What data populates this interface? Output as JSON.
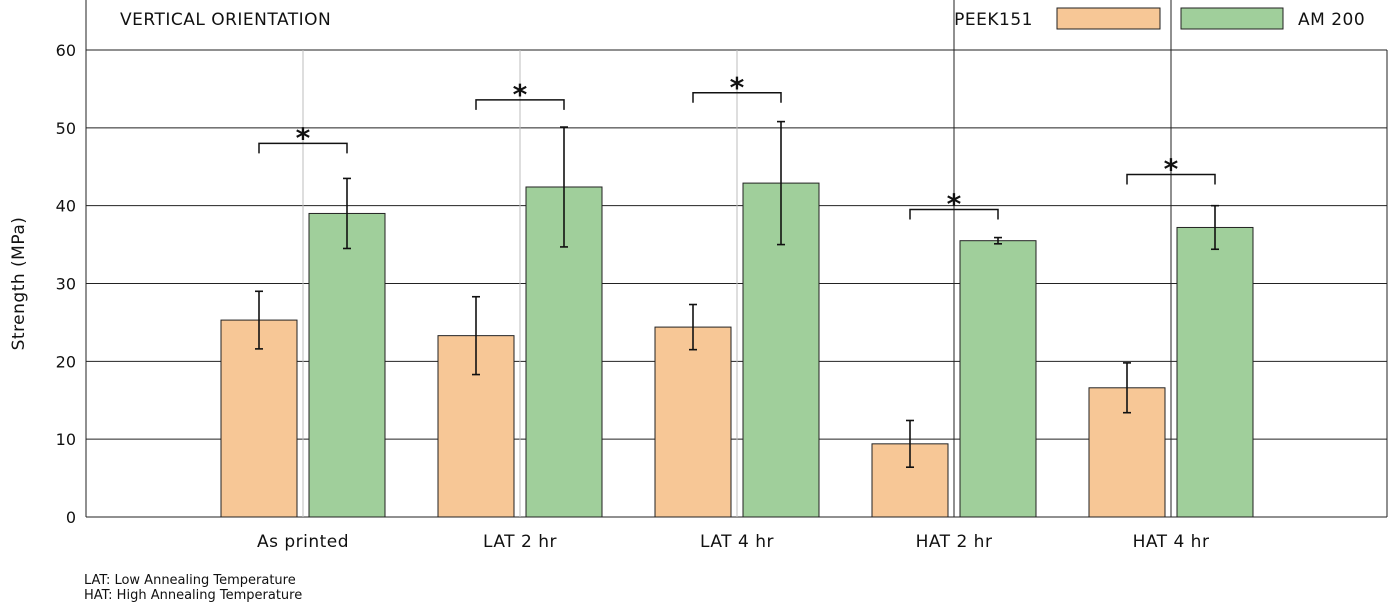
{
  "chart_data": {
    "type": "bar",
    "annotation": "VERTICAL ORIENTATION",
    "ylabel": "Strength (MPa)",
    "ylim": [
      0,
      60
    ],
    "yticks": [
      0,
      10,
      20,
      30,
      40,
      50,
      60
    ],
    "grid": true,
    "legend_position": "top-right",
    "categories": [
      "As printed",
      "LAT 2 hr",
      "LAT 4 hr",
      "HAT 2 hr",
      "HAT 4 hr"
    ],
    "series": [
      {
        "name": "PEEK151",
        "color": "#f7c796",
        "values": [
          25.3,
          23.3,
          24.4,
          9.4,
          16.6
        ],
        "errors": [
          3.7,
          5.0,
          2.9,
          3.0,
          3.2
        ]
      },
      {
        "name": "AM 200",
        "color": "#a0cf9b",
        "values": [
          39.0,
          42.4,
          42.9,
          35.5,
          37.2
        ],
        "errors": [
          4.5,
          7.7,
          7.9,
          0.4,
          2.8
        ]
      }
    ],
    "significance": [
      {
        "category": "As printed",
        "level": 48.0,
        "marker": "*"
      },
      {
        "category": "LAT 2 hr",
        "level": 53.6,
        "marker": "*"
      },
      {
        "category": "LAT 4 hr",
        "level": 54.5,
        "marker": "*"
      },
      {
        "category": "HAT 2 hr",
        "level": 39.5,
        "marker": "*"
      },
      {
        "category": "HAT 4 hr",
        "level": 44.0,
        "marker": "*"
      }
    ],
    "footnotes": [
      "LAT: Low Annealing Temperature",
      "HAT: High Annealing Temperature"
    ]
  }
}
